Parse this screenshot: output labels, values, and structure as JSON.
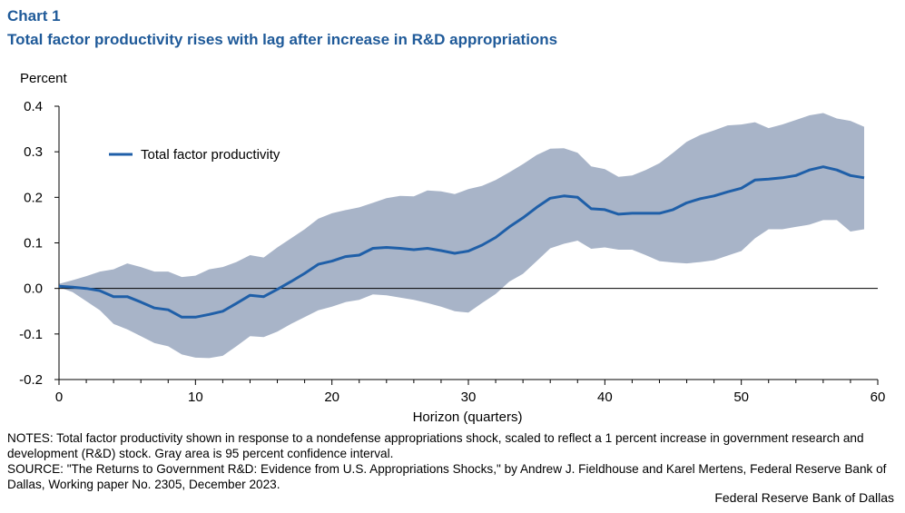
{
  "header": {
    "chart_label": "Chart 1",
    "title": "Total factor productivity rises with lag after increase in R&D appropriations"
  },
  "chart_data": {
    "type": "area",
    "title": "Total factor productivity rises with lag after increase in R&D appropriations",
    "ylabel": "Percent",
    "xlabel": "Horizon (quarters)",
    "xlim": [
      0,
      60
    ],
    "ylim": [
      -0.2,
      0.4
    ],
    "x_ticks": [
      "0",
      "10",
      "20",
      "30",
      "40",
      "50",
      "60"
    ],
    "y_ticks": [
      "0.4",
      "0.3",
      "0.2",
      "0.1",
      "0.0",
      "-0.1",
      "-0.2"
    ],
    "legend_position": "top-left",
    "x": [
      0,
      1,
      2,
      3,
      4,
      5,
      6,
      7,
      8,
      9,
      10,
      11,
      12,
      13,
      14,
      15,
      16,
      17,
      18,
      19,
      20,
      21,
      22,
      23,
      24,
      25,
      26,
      27,
      28,
      29,
      30,
      31,
      32,
      33,
      34,
      35,
      36,
      37,
      38,
      39,
      40,
      41,
      42,
      43,
      44,
      45,
      46,
      47,
      48,
      49,
      50,
      51,
      52,
      53,
      54,
      55,
      56,
      57,
      58,
      59
    ],
    "series": [
      {
        "name": "Total factor productivity",
        "color": "#1f5fa8",
        "values": [
          0.005,
          0.003,
          0.0,
          -0.005,
          -0.018,
          -0.018,
          -0.03,
          -0.043,
          -0.047,
          -0.063,
          -0.063,
          -0.057,
          -0.05,
          -0.033,
          -0.015,
          -0.018,
          -0.002,
          0.015,
          0.033,
          0.053,
          0.06,
          0.07,
          0.073,
          0.088,
          0.09,
          0.088,
          0.085,
          0.088,
          0.083,
          0.077,
          0.082,
          0.095,
          0.112,
          0.135,
          0.155,
          0.178,
          0.198,
          0.203,
          0.2,
          0.175,
          0.173,
          0.163,
          0.165,
          0.165,
          0.165,
          0.173,
          0.188,
          0.197,
          0.203,
          0.212,
          0.22,
          0.238,
          0.24,
          0.243,
          0.248,
          0.26,
          0.267,
          0.26,
          0.248,
          0.243
        ]
      }
    ],
    "confidence_band": {
      "color": "#a8b4c8",
      "upper": [
        0.01,
        0.018,
        0.027,
        0.037,
        0.042,
        0.055,
        0.047,
        0.037,
        0.037,
        0.025,
        0.028,
        0.042,
        0.047,
        0.058,
        0.073,
        0.068,
        0.09,
        0.11,
        0.13,
        0.153,
        0.165,
        0.172,
        0.178,
        0.188,
        0.198,
        0.203,
        0.202,
        0.215,
        0.213,
        0.207,
        0.218,
        0.225,
        0.238,
        0.255,
        0.273,
        0.293,
        0.307,
        0.308,
        0.298,
        0.268,
        0.262,
        0.245,
        0.248,
        0.26,
        0.275,
        0.298,
        0.322,
        0.337,
        0.347,
        0.358,
        0.36,
        0.365,
        0.352,
        0.36,
        0.37,
        0.38,
        0.385,
        0.373,
        0.368,
        0.355
      ],
      "lower": [
        0.003,
        -0.008,
        -0.028,
        -0.048,
        -0.078,
        -0.09,
        -0.105,
        -0.12,
        -0.127,
        -0.145,
        -0.152,
        -0.153,
        -0.148,
        -0.127,
        -0.105,
        -0.107,
        -0.095,
        -0.078,
        -0.063,
        -0.048,
        -0.04,
        -0.03,
        -0.025,
        -0.013,
        -0.015,
        -0.02,
        -0.025,
        -0.032,
        -0.04,
        -0.05,
        -0.053,
        -0.032,
        -0.012,
        0.015,
        0.032,
        0.06,
        0.088,
        0.098,
        0.105,
        0.087,
        0.09,
        0.085,
        0.085,
        0.073,
        0.06,
        0.057,
        0.055,
        0.058,
        0.062,
        0.072,
        0.082,
        0.11,
        0.13,
        0.13,
        0.135,
        0.14,
        0.15,
        0.15,
        0.125,
        0.13
      ]
    }
  },
  "footer": {
    "notes": "NOTES: Total factor productivity shown in response to a nondefense appropriations shock, scaled to reflect a 1 percent increase in government research and development (R&D) stock. Gray area is 95 percent confidence interval.",
    "source": "SOURCE: \"The Returns to Government R&D: Evidence from U.S. Appropriations Shocks,\" by Andrew J. Fieldhouse and Karel Mertens, Federal Reserve Bank of Dallas, Working paper No. 2305, December 2023.",
    "credit": "Federal Reserve Bank of Dallas"
  }
}
